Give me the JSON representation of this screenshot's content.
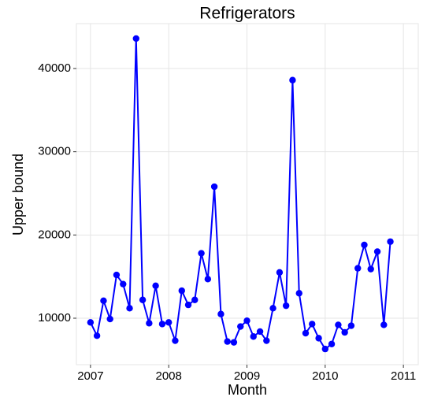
{
  "chart_data": {
    "type": "line",
    "title": "Refrigerators",
    "x_label": "Month",
    "y_label": "Upper bound",
    "x": [
      2007,
      2007.083,
      2007.167,
      2007.25,
      2007.333,
      2007.417,
      2007.5,
      2007.583,
      2007.667,
      2007.75,
      2007.833,
      2007.917,
      2008,
      2008.083,
      2008.167,
      2008.25,
      2008.333,
      2008.417,
      2008.5,
      2008.583,
      2008.667,
      2008.75,
      2008.833,
      2008.917,
      2009,
      2009.083,
      2009.167,
      2009.25,
      2009.333,
      2009.417,
      2009.5,
      2009.583,
      2009.667,
      2009.75,
      2009.833,
      2009.917,
      2010,
      2010.083,
      2010.167,
      2010.25,
      2010.333,
      2010.417,
      2010.5,
      2010.583,
      2010.667,
      2010.75,
      2010.833
    ],
    "series": [
      {
        "name": "Upper bound",
        "color": "#0000ff",
        "values": [
          9500,
          7900,
          12100,
          9900,
          15200,
          14100,
          11200,
          43600,
          12200,
          9400,
          13900,
          9300,
          9500,
          7300,
          13300,
          11600,
          12200,
          17800,
          14700,
          25800,
          10500,
          7200,
          7100,
          9000,
          9700,
          7800,
          8400,
          7300,
          11200,
          15500,
          11500,
          38600,
          13000,
          8200,
          9300,
          7600,
          6300,
          6900,
          9200,
          8300,
          9100,
          16000,
          18800,
          15900,
          18000,
          9200,
          19200
        ]
      }
    ],
    "xlim": [
      2006.82,
      2011.19
    ],
    "xticks": [
      2007,
      2008,
      2009,
      2010,
      2011
    ],
    "ylim": [
      4418,
      45390
    ],
    "yticks": [
      10000,
      20000,
      30000,
      40000
    ],
    "grid": true
  }
}
